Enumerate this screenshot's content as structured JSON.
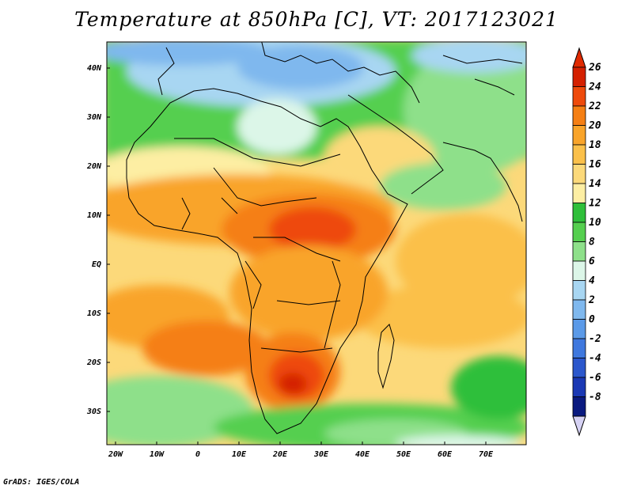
{
  "title": "Temperature at 850hPa [C], VT: 2017123021",
  "footer": "GrADS: IGES/COLA",
  "map": {
    "lat_labels": [
      "40N",
      "30N",
      "20N",
      "10N",
      "EQ",
      "10S",
      "20S",
      "30S"
    ],
    "lon_labels": [
      "20W",
      "10W",
      "0",
      "10E",
      "20E",
      "30E",
      "40E",
      "50E",
      "60E",
      "70E"
    ]
  },
  "colorbar": {
    "labels": [
      "26",
      "24",
      "22",
      "20",
      "18",
      "16",
      "14",
      "12",
      "10",
      "8",
      "6",
      "4",
      "2",
      "0",
      "-2",
      "-4",
      "-6",
      "-8"
    ],
    "colors": [
      "#d42000",
      "#ee4a0b",
      "#f57f14",
      "#f9a42a",
      "#fbc04a",
      "#fcd97a",
      "#fdeea3",
      "#2fbf3a",
      "#55cf4f",
      "#8ee08a",
      "#dcf6e8",
      "#a8d6f2",
      "#7fb8ee",
      "#5b9ae8",
      "#3f78de",
      "#2b57cc",
      "#1a38b4",
      "#0a1a80"
    ],
    "top_arrow_color": "#e02a00",
    "bottom_arrow_color": "#d6d2f4"
  }
}
